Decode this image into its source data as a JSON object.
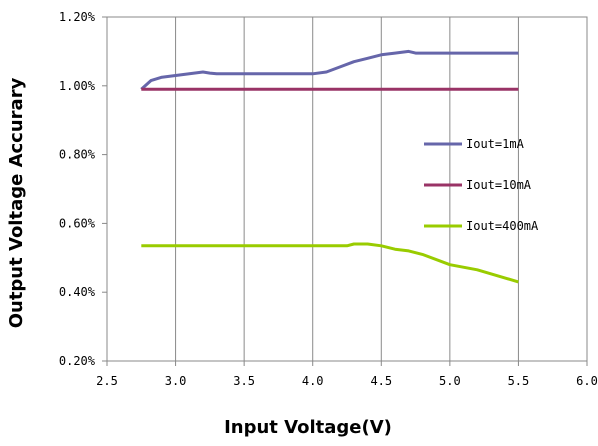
{
  "chart_data": {
    "type": "line",
    "title": "",
    "xlabel": "Input Voltage(V)",
    "ylabel": "Output Voltage Accurary",
    "xlim": [
      2.5,
      6.0
    ],
    "ylim": [
      0.2,
      1.2
    ],
    "x_ticks": [
      "2.5",
      "3.0",
      "3.5",
      "4.0",
      "4.5",
      "5.0",
      "5.5",
      "6.0"
    ],
    "y_ticks": [
      "0.20%",
      "0.40%",
      "0.60%",
      "0.80%",
      "1.00%",
      "1.20%"
    ],
    "grid": "vertical",
    "legend_position": "right",
    "series": [
      {
        "name": "Iout=1mA",
        "color": "#6666aa",
        "x": [
          2.75,
          2.82,
          2.9,
          3.0,
          3.1,
          3.2,
          3.25,
          3.3,
          3.5,
          4.0,
          4.1,
          4.2,
          4.3,
          4.4,
          4.5,
          4.6,
          4.7,
          4.75,
          5.0,
          5.5
        ],
        "y": [
          0.99,
          1.015,
          1.025,
          1.03,
          1.035,
          1.04,
          1.037,
          1.035,
          1.035,
          1.035,
          1.04,
          1.055,
          1.07,
          1.08,
          1.09,
          1.095,
          1.1,
          1.095,
          1.095,
          1.095
        ]
      },
      {
        "name": "Iout=10mA",
        "color": "#993366",
        "x": [
          2.75,
          5.5
        ],
        "y": [
          0.99,
          0.99
        ]
      },
      {
        "name": "Iout=400mA",
        "color": "#99cc00",
        "x": [
          2.75,
          3.0,
          3.5,
          4.0,
          4.25,
          4.3,
          4.4,
          4.5,
          4.6,
          4.7,
          4.8,
          5.0,
          5.2,
          5.5
        ],
        "y": [
          0.535,
          0.535,
          0.535,
          0.535,
          0.535,
          0.54,
          0.54,
          0.535,
          0.525,
          0.52,
          0.51,
          0.48,
          0.465,
          0.43
        ]
      }
    ]
  }
}
